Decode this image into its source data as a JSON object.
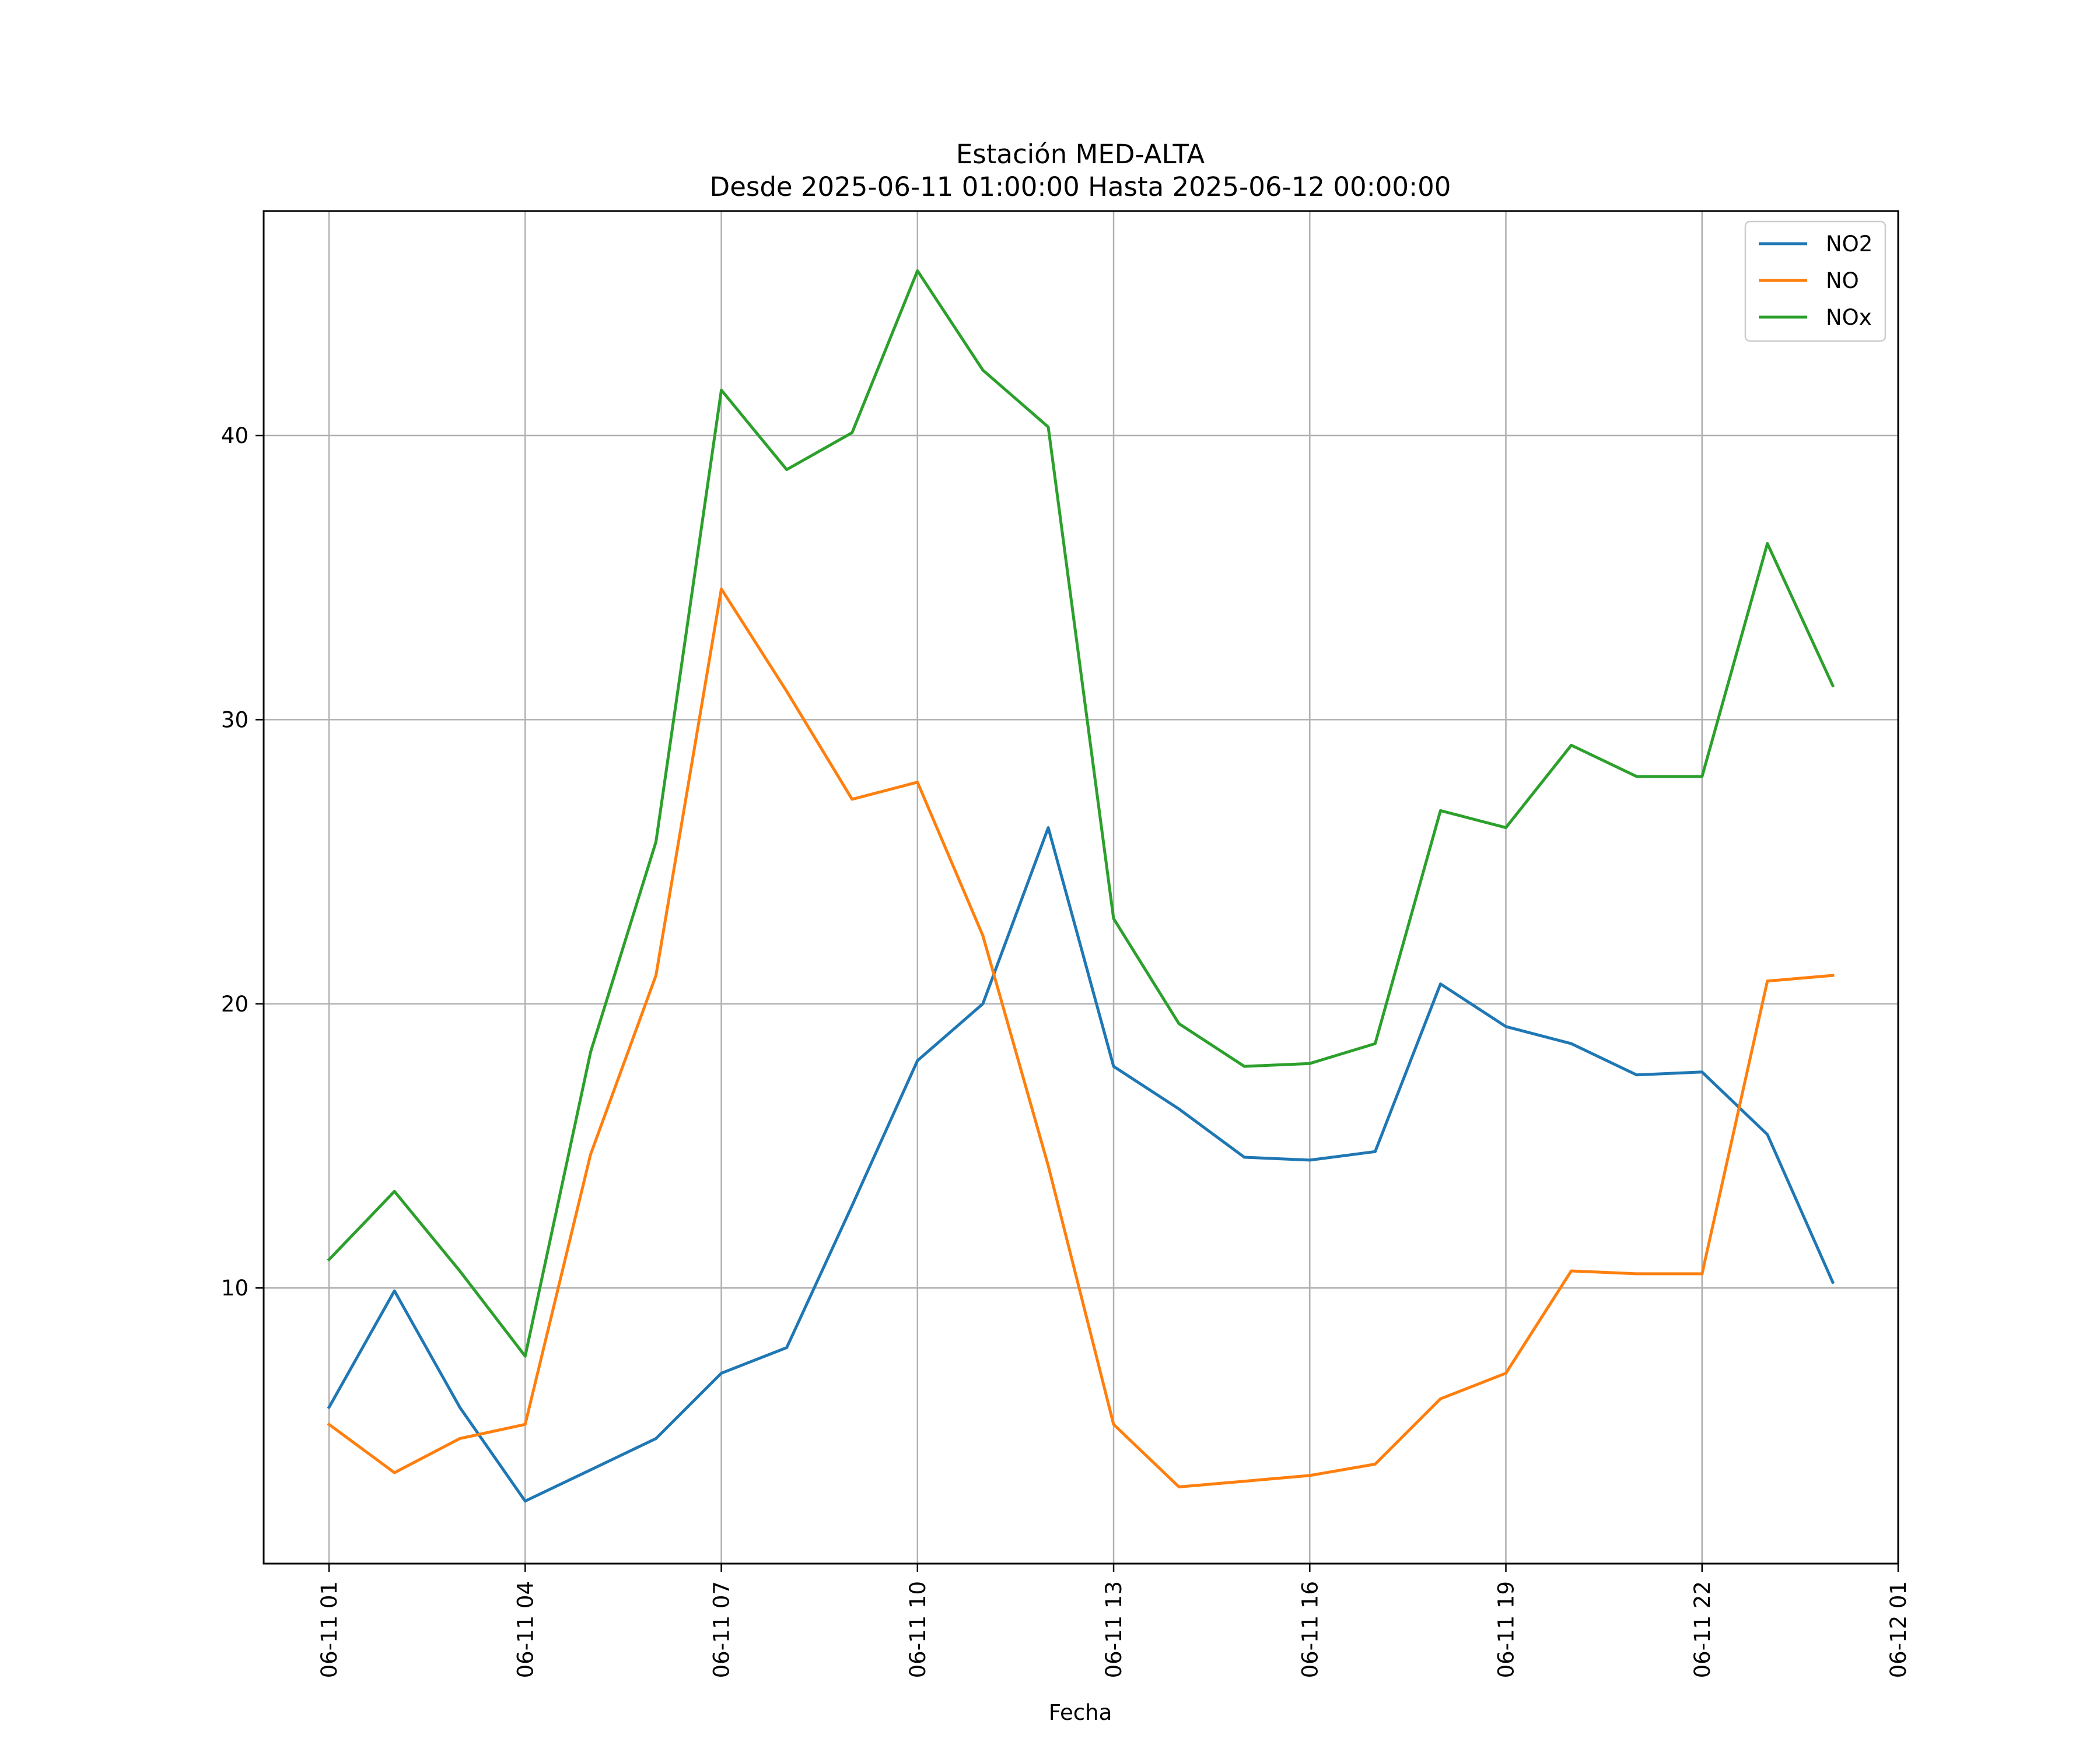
{
  "chart_data": {
    "type": "line",
    "title": "Estación MED-ALTA",
    "subtitle": "Desde 2025-06-11 01:00:00 Hasta 2025-06-12 00:00:00",
    "xlabel": "Fecha",
    "ylabel": "",
    "x": [
      "2025-06-11 01:00",
      "2025-06-11 02:00",
      "2025-06-11 03:00",
      "2025-06-11 04:00",
      "2025-06-11 05:00",
      "2025-06-11 06:00",
      "2025-06-11 07:00",
      "2025-06-11 08:00",
      "2025-06-11 09:00",
      "2025-06-11 10:00",
      "2025-06-11 11:00",
      "2025-06-11 12:00",
      "2025-06-11 13:00",
      "2025-06-11 14:00",
      "2025-06-11 15:00",
      "2025-06-11 16:00",
      "2025-06-11 17:00",
      "2025-06-11 18:00",
      "2025-06-11 19:00",
      "2025-06-11 20:00",
      "2025-06-11 21:00",
      "2025-06-11 22:00",
      "2025-06-11 23:00",
      "2025-06-12 00:00"
    ],
    "xlim": [
      "2025-06-11 00:00",
      "2025-06-12 01:00"
    ],
    "xticks": [
      "2025-06-11 01:00",
      "2025-06-11 04:00",
      "2025-06-11 07:00",
      "2025-06-11 10:00",
      "2025-06-11 13:00",
      "2025-06-11 16:00",
      "2025-06-11 19:00",
      "2025-06-11 22:00",
      "2025-06-12 01:00"
    ],
    "xtick_labels": [
      "06-11 01",
      "06-11 04",
      "06-11 07",
      "06-11 10",
      "06-11 13",
      "06-11 16",
      "06-11 19",
      "06-11 22",
      "06-12 01"
    ],
    "ylim": [
      0.3,
      47.9
    ],
    "yticks": [
      10,
      20,
      30,
      40
    ],
    "ytick_labels": [
      "10",
      "20",
      "30",
      "40"
    ],
    "grid": true,
    "legend_position": "top-right",
    "series": [
      {
        "name": "NO2",
        "color": "#1f77b4",
        "values": [
          5.8,
          9.9,
          5.8,
          2.5,
          3.6,
          4.7,
          7.0,
          7.9,
          12.9,
          18.0,
          20.0,
          26.2,
          17.8,
          16.3,
          14.6,
          14.5,
          14.8,
          20.7,
          19.2,
          18.6,
          17.5,
          17.6,
          15.4,
          10.2
        ]
      },
      {
        "name": "NO",
        "color": "#ff7f0e",
        "values": [
          5.2,
          3.5,
          4.7,
          5.2,
          14.7,
          21.0,
          34.6,
          31.0,
          27.2,
          27.8,
          22.4,
          14.3,
          5.2,
          3.0,
          3.2,
          3.4,
          3.8,
          6.1,
          7.0,
          10.6,
          10.5,
          10.5,
          20.8,
          21.0
        ]
      },
      {
        "name": "NOx",
        "color": "#2ca02c",
        "values": [
          11.0,
          13.4,
          10.6,
          7.6,
          18.3,
          25.7,
          41.6,
          38.8,
          40.1,
          45.8,
          42.3,
          40.3,
          23.0,
          19.3,
          17.8,
          17.9,
          18.6,
          26.8,
          26.2,
          29.1,
          28.0,
          28.0,
          36.2,
          31.2
        ]
      }
    ]
  }
}
